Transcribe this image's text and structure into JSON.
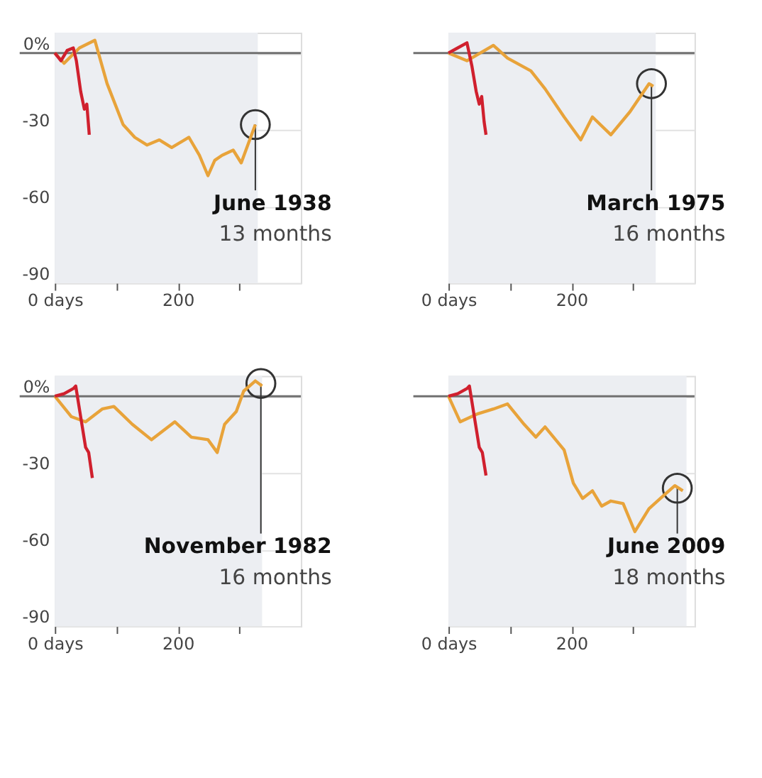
{
  "chart_data": [
    {
      "type": "line",
      "xlim": [
        0,
        400
      ],
      "ylim": [
        -90,
        8
      ],
      "xticks": [
        {
          "value": 0,
          "label": "0 days"
        },
        {
          "value": 100,
          "label": null
        },
        200,
        {
          "value": 300,
          "label": null
        }
      ],
      "yticks": [
        {
          "value": 0,
          "label": "0%"
        },
        -30,
        -60,
        -90
      ],
      "grid": "y",
      "bands": [
        {
          "axis": "x",
          "from": 0,
          "to": 330,
          "color": "#eceef2"
        }
      ],
      "ref_lines": [
        {
          "axis": "y",
          "value": 0,
          "color": "#707070"
        }
      ],
      "series": [
        {
          "color": "#e8a33a",
          "x": [
            0,
            15,
            40,
            65,
            85,
            111,
            130,
            150,
            170,
            190,
            218,
            235,
            249,
            260,
            272,
            290,
            303,
            326
          ],
          "values": [
            0,
            -4,
            2,
            5,
            -12,
            -28,
            -33,
            -36,
            -34,
            -37,
            -33,
            -40,
            -48,
            -42,
            -40,
            -38,
            -43,
            -28
          ]
        },
        {
          "color": "#d0202e",
          "x": [
            0,
            10,
            20,
            30,
            35,
            42,
            48,
            52,
            56
          ],
          "values": [
            0,
            -3,
            1,
            2,
            -3,
            -15,
            -22,
            -20,
            -32
          ]
        }
      ],
      "annotations": [
        {
          "text": "June 1938",
          "x": 326,
          "y": -28
        },
        "13 months"
      ]
    },
    {
      "type": "line",
      "xlim": [
        0,
        400
      ],
      "ylim": [
        -90,
        8
      ],
      "xticks": [
        {
          "value": 0,
          "label": "0 days"
        },
        {
          "value": 100,
          "label": null
        },
        200,
        {
          "value": 300,
          "label": null
        }
      ],
      "yticks": [
        0,
        -30,
        -60,
        -90
      ],
      "tick_labels": "x",
      "grid": "y",
      "bands": [
        {
          "axis": "x",
          "from": 0,
          "to": 337,
          "color": "#eceef2"
        }
      ],
      "ref_lines": [
        {
          "axis": "y",
          "value": 0,
          "color": "#707070"
        }
      ],
      "series": [
        {
          "color": "#e8a33a",
          "x": [
            0,
            30,
            73,
            96,
            134,
            157,
            188,
            215,
            234,
            264,
            295,
            326,
            333
          ],
          "values": [
            0,
            -3,
            3,
            -2,
            -7,
            -14,
            -25,
            -34,
            -25,
            -32,
            -23,
            -12,
            -13
          ]
        },
        {
          "color": "#d0202e",
          "x": [
            0,
            15,
            30,
            38,
            45,
            50,
            54,
            58,
            61
          ],
          "values": [
            0,
            2,
            4,
            -5,
            -15,
            -20,
            -17,
            -27,
            -32
          ]
        }
      ],
      "annotations": [
        {
          "text": "March 1975",
          "x": 330,
          "y": -12
        },
        "16 months"
      ]
    },
    {
      "type": "line",
      "xlim": [
        0,
        400
      ],
      "ylim": [
        -90,
        8
      ],
      "xticks": [
        {
          "value": 0,
          "label": "0 days"
        },
        {
          "value": 100,
          "label": null
        },
        200,
        {
          "value": 300,
          "label": null
        }
      ],
      "yticks": [
        {
          "value": 0,
          "label": "0%"
        },
        -30,
        -60,
        -90
      ],
      "grid": "y",
      "bands": [
        {
          "axis": "x",
          "from": 0,
          "to": 337,
          "color": "#eceef2"
        }
      ],
      "ref_lines": [
        {
          "axis": "y",
          "value": 0,
          "color": "#707070"
        }
      ],
      "series": [
        {
          "color": "#e8a33a",
          "x": [
            0,
            27,
            50,
            77,
            96,
            126,
            157,
            195,
            222,
            249,
            264,
            276,
            295,
            307,
            326,
            337
          ],
          "values": [
            0,
            -8,
            -10,
            -5,
            -4,
            -11,
            -17,
            -10,
            -16,
            -17,
            -22,
            -11,
            -6,
            2,
            6,
            4
          ]
        },
        {
          "color": "#d0202e",
          "x": [
            0,
            15,
            30,
            34,
            42,
            50,
            55,
            61
          ],
          "values": [
            0,
            1,
            3,
            4,
            -8,
            -20,
            -22,
            -32
          ]
        }
      ],
      "annotations": [
        {
          "text": "November 1982",
          "x": 335,
          "y": 5
        },
        "16 months"
      ]
    },
    {
      "type": "line",
      "xlim": [
        0,
        400
      ],
      "ylim": [
        -90,
        8
      ],
      "xticks": [
        {
          "value": 0,
          "label": "0 days"
        },
        {
          "value": 100,
          "label": null
        },
        200,
        {
          "value": 300,
          "label": null
        }
      ],
      "yticks": [
        0,
        -30,
        -60,
        -90
      ],
      "tick_labels": "x",
      "grid": "y",
      "bands": [
        {
          "axis": "x",
          "from": 0,
          "to": 387,
          "color": "#eceef2"
        }
      ],
      "ref_lines": [
        {
          "axis": "y",
          "value": 0,
          "color": "#707070"
        }
      ],
      "series": [
        {
          "color": "#e8a33a",
          "x": [
            0,
            19,
            46,
            73,
            96,
            123,
            142,
            157,
            188,
            203,
            218,
            234,
            249,
            264,
            284,
            303,
            326,
            349,
            368,
            381
          ],
          "values": [
            0,
            -10,
            -7,
            -5,
            -3,
            -11,
            -16,
            -12,
            -21,
            -34,
            -40,
            -37,
            -43,
            -41,
            -42,
            -53,
            -44,
            -39,
            -35,
            -37
          ]
        },
        {
          "color": "#d0202e",
          "x": [
            0,
            15,
            30,
            34,
            42,
            50,
            55,
            61
          ],
          "values": [
            0,
            1,
            3,
            4,
            -8,
            -20,
            -22,
            -31
          ]
        }
      ],
      "annotations": [
        {
          "text": "June 2009",
          "x": 372,
          "y": -36
        },
        "18 months"
      ]
    }
  ]
}
